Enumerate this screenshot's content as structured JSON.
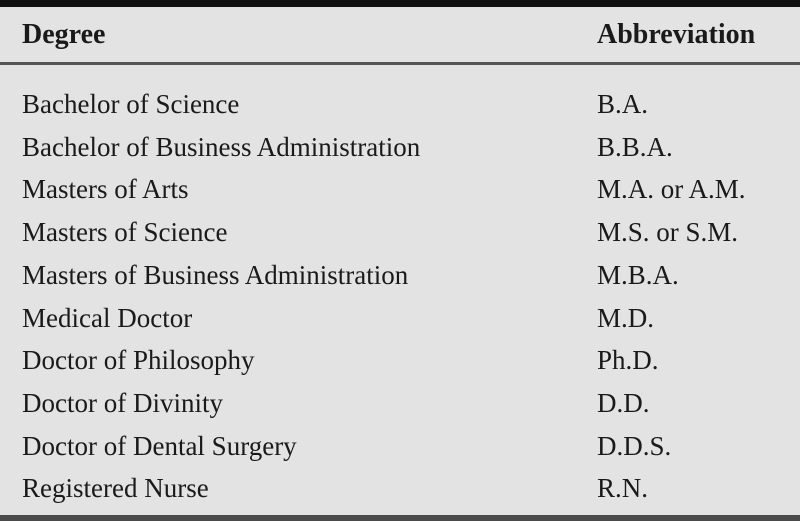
{
  "table": {
    "headers": [
      "Degree",
      "Abbreviation"
    ],
    "rows": [
      [
        "Bachelor of Science",
        "B.A."
      ],
      [
        "Bachelor of Business Administration",
        "B.B.A."
      ],
      [
        "Masters of Arts",
        "M.A. or A.M."
      ],
      [
        "Masters of Science",
        "M.S. or S.M."
      ],
      [
        "Masters of Business Administration",
        "M.B.A."
      ],
      [
        "Medical Doctor",
        "M.D."
      ],
      [
        "Doctor of Philosophy",
        "Ph.D."
      ],
      [
        "Doctor of Divinity",
        "D.D."
      ],
      [
        "Doctor of Dental Surgery",
        "D.D.S."
      ],
      [
        "Registered Nurse",
        "R.N."
      ]
    ]
  }
}
